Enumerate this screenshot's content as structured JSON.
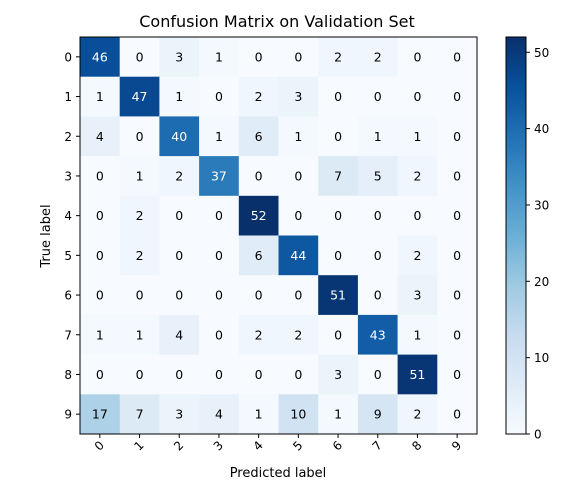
{
  "chart_data": {
    "type": "heatmap",
    "title": "Confusion Matrix on Validation Set",
    "xlabel": "Predicted label",
    "ylabel": "True label",
    "x_categories": [
      "0",
      "1",
      "2",
      "3",
      "4",
      "5",
      "6",
      "7",
      "8",
      "9"
    ],
    "y_categories": [
      "0",
      "1",
      "2",
      "3",
      "4",
      "5",
      "6",
      "7",
      "8",
      "9"
    ],
    "matrix": [
      [
        46,
        0,
        3,
        1,
        0,
        0,
        2,
        2,
        0,
        0
      ],
      [
        1,
        47,
        1,
        0,
        2,
        3,
        0,
        0,
        0,
        0
      ],
      [
        4,
        0,
        40,
        1,
        6,
        1,
        0,
        1,
        1,
        0
      ],
      [
        0,
        1,
        2,
        37,
        0,
        0,
        7,
        5,
        2,
        0
      ],
      [
        0,
        2,
        0,
        0,
        52,
        0,
        0,
        0,
        0,
        0
      ],
      [
        0,
        2,
        0,
        0,
        6,
        44,
        0,
        0,
        2,
        0
      ],
      [
        0,
        0,
        0,
        0,
        0,
        0,
        51,
        0,
        3,
        0
      ],
      [
        1,
        1,
        4,
        0,
        2,
        2,
        0,
        43,
        1,
        0
      ],
      [
        0,
        0,
        0,
        0,
        0,
        0,
        3,
        0,
        51,
        0
      ],
      [
        17,
        7,
        3,
        4,
        1,
        10,
        1,
        9,
        2,
        0
      ]
    ],
    "colormap": "Blues",
    "value_range": [
      0,
      52
    ],
    "colorbar_ticks": [
      "0",
      "10",
      "20",
      "30",
      "40",
      "50"
    ],
    "x_tick_rotation_deg": 45,
    "grid": false
  }
}
